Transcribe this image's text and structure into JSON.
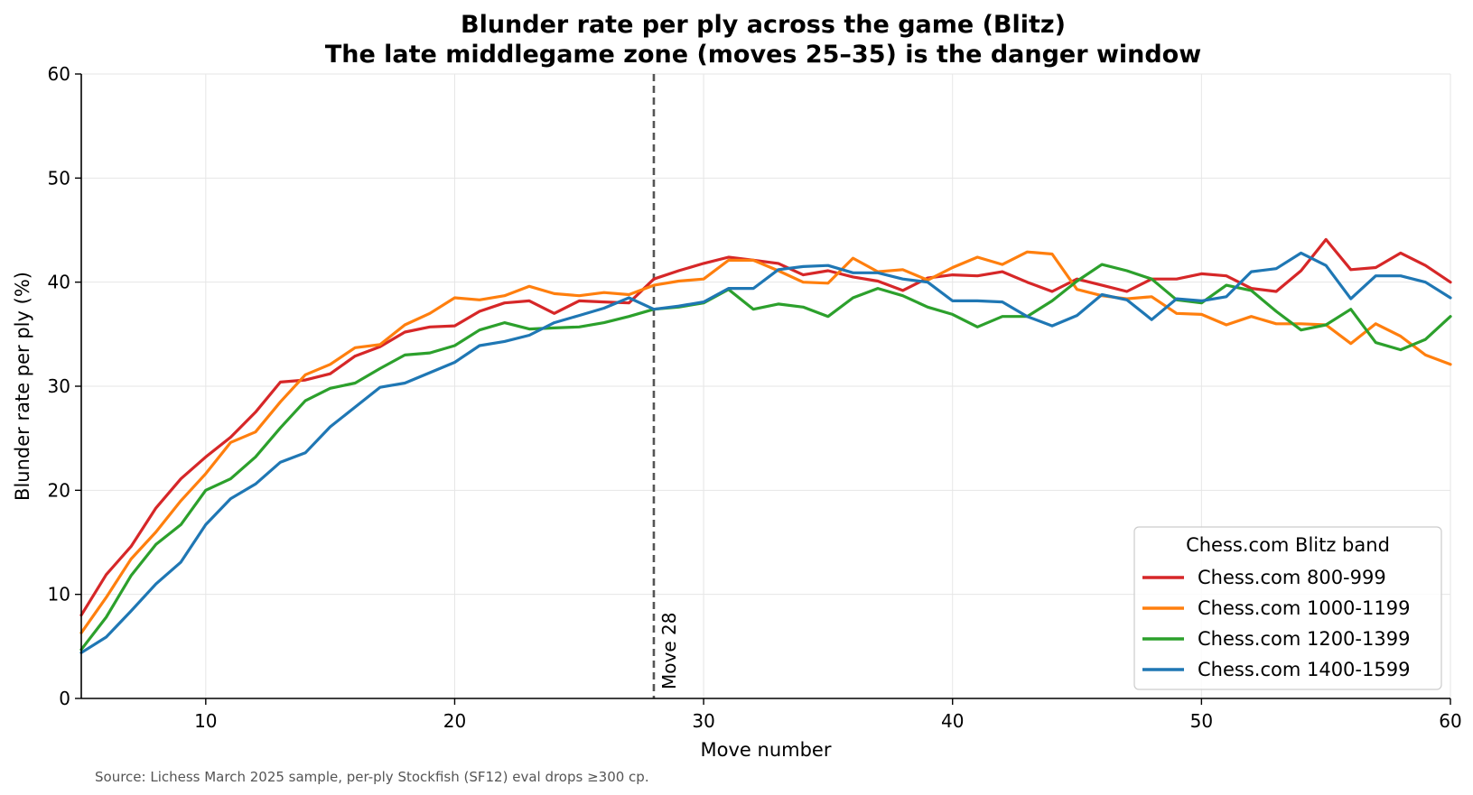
{
  "chart_data": {
    "type": "line",
    "title": "Blunder rate per ply across the game (Blitz)",
    "subtitle": "The late middlegame zone (moves 25–35) is the danger window",
    "xlabel": "Move number",
    "ylabel": "Blunder rate per ply (%)",
    "xlim": [
      5,
      60
    ],
    "ylim": [
      0,
      60
    ],
    "xticks": [
      10,
      20,
      30,
      40,
      50,
      60
    ],
    "yticks": [
      0,
      10,
      20,
      30,
      40,
      50,
      60
    ],
    "grid": true,
    "legend_title": "Chess.com Blitz band",
    "legend_position": "lower-right",
    "annotation": {
      "x": 28,
      "text": "Move 28",
      "style": "dashed",
      "color": "#555555"
    },
    "source": "Source: Lichess March 2025 sample, per-ply Stockfish (SF12) eval drops ≥300 cp.",
    "x": [
      5,
      6,
      7,
      8,
      9,
      10,
      11,
      12,
      13,
      14,
      15,
      16,
      17,
      18,
      19,
      20,
      21,
      22,
      23,
      24,
      25,
      26,
      27,
      28,
      29,
      30,
      31,
      32,
      33,
      34,
      35,
      36,
      37,
      38,
      39,
      40,
      41,
      42,
      43,
      44,
      45,
      46,
      47,
      48,
      49,
      50,
      51,
      52,
      53,
      54,
      55,
      56,
      57,
      58,
      59,
      60
    ],
    "series": [
      {
        "name": "Chess.com 800-999",
        "color": "#d62728",
        "values": [
          8.0,
          11.9,
          14.6,
          18.3,
          21.1,
          23.2,
          25.1,
          27.5,
          30.4,
          30.6,
          31.2,
          32.9,
          33.8,
          35.2,
          35.7,
          35.8,
          37.2,
          38.0,
          38.2,
          37.0,
          38.2,
          38.1,
          38.0,
          40.3,
          41.1,
          41.8,
          42.4,
          42.1,
          41.8,
          40.7,
          41.1,
          40.5,
          40.1,
          39.2,
          40.4,
          40.7,
          40.6,
          41.0,
          40.0,
          39.1,
          40.3,
          39.7,
          39.1,
          40.3,
          40.3,
          40.8,
          40.6,
          39.4,
          39.1,
          41.1,
          44.1,
          41.2,
          41.4,
          42.8,
          41.6,
          40.0
        ]
      },
      {
        "name": "Chess.com 1000-1199",
        "color": "#ff7f0e",
        "values": [
          6.3,
          9.7,
          13.4,
          16.0,
          19.0,
          21.6,
          24.6,
          25.6,
          28.5,
          31.1,
          32.1,
          33.7,
          34.0,
          35.9,
          37.0,
          38.5,
          38.3,
          38.7,
          39.6,
          38.9,
          38.7,
          39.0,
          38.8,
          39.7,
          40.1,
          40.3,
          42.1,
          42.1,
          41.1,
          40.0,
          39.9,
          42.3,
          41.0,
          41.2,
          40.2,
          41.4,
          42.4,
          41.7,
          42.9,
          42.7,
          39.3,
          38.7,
          38.4,
          38.6,
          37.0,
          36.9,
          35.9,
          36.7,
          36.0,
          36.0,
          35.9,
          34.1,
          36.0,
          34.8,
          33.0,
          32.1
        ]
      },
      {
        "name": "Chess.com 1200-1399",
        "color": "#2ca02c",
        "values": [
          4.7,
          7.8,
          11.8,
          14.8,
          16.7,
          20.0,
          21.1,
          23.2,
          26.0,
          28.6,
          29.8,
          30.3,
          31.7,
          33.0,
          33.2,
          33.9,
          35.4,
          36.1,
          35.5,
          35.6,
          35.7,
          36.1,
          36.7,
          37.4,
          37.6,
          38.0,
          39.3,
          37.4,
          37.9,
          37.6,
          36.7,
          38.5,
          39.4,
          38.7,
          37.6,
          36.9,
          35.7,
          36.7,
          36.7,
          38.2,
          40.1,
          41.7,
          41.1,
          40.3,
          38.3,
          38.0,
          39.7,
          39.2,
          37.2,
          35.4,
          35.9,
          37.4,
          34.2,
          33.5,
          34.5,
          36.7
        ]
      },
      {
        "name": "Chess.com 1400-1599",
        "color": "#1f77b4",
        "values": [
          4.4,
          5.9,
          8.4,
          11.0,
          13.1,
          16.7,
          19.2,
          20.6,
          22.7,
          23.6,
          26.1,
          28.0,
          29.9,
          30.3,
          31.3,
          32.3,
          33.9,
          34.3,
          34.9,
          36.1,
          36.8,
          37.5,
          38.5,
          37.4,
          37.7,
          38.1,
          39.4,
          39.4,
          41.2,
          41.5,
          41.6,
          40.9,
          40.9,
          40.3,
          40.0,
          38.2,
          38.2,
          38.1,
          36.7,
          35.8,
          36.8,
          38.8,
          38.3,
          36.4,
          38.4,
          38.2,
          38.6,
          41.0,
          41.3,
          42.8,
          41.6,
          38.4,
          40.6,
          40.6,
          40.0,
          38.5
        ]
      }
    ]
  }
}
